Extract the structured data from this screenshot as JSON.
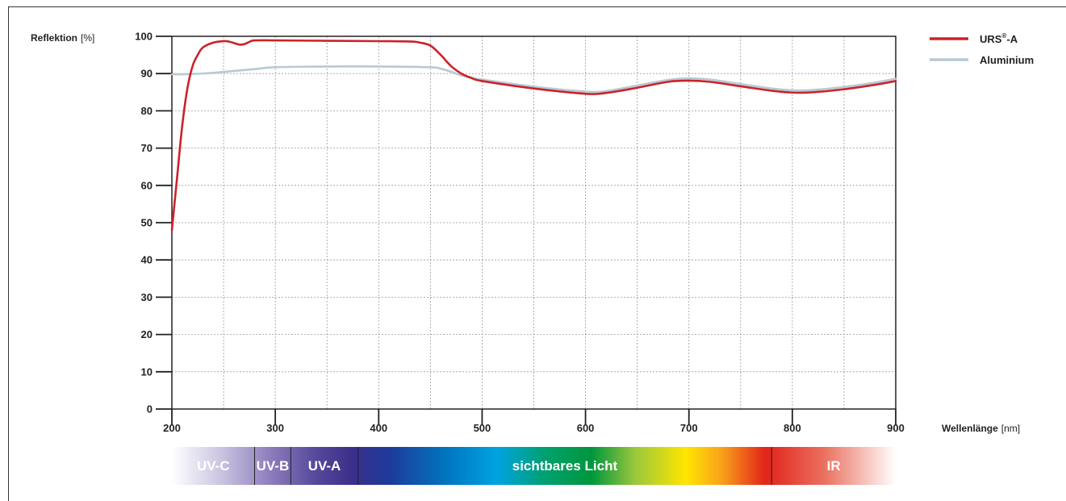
{
  "chart_data": {
    "type": "line",
    "ylabel": "Reflektion",
    "ylabel_unit": "[%]",
    "xlabel": "Wellenlänge",
    "xlabel_unit": "[nm]",
    "xlim": [
      200,
      900
    ],
    "ylim": [
      0,
      100
    ],
    "x_ticks": [
      200,
      300,
      400,
      500,
      600,
      700,
      800,
      900
    ],
    "y_ticks": [
      0,
      10,
      20,
      30,
      40,
      50,
      60,
      70,
      80,
      90,
      100
    ],
    "grid": true,
    "legend_position": "top-right",
    "series": [
      {
        "name": "URS",
        "name_superscript": "®",
        "name_suffix": "-A",
        "color": "#cc2229",
        "points": [
          [
            200,
            48
          ],
          [
            205,
            62
          ],
          [
            210,
            76
          ],
          [
            215,
            86
          ],
          [
            220,
            92
          ],
          [
            225,
            95
          ],
          [
            230,
            97
          ],
          [
            240,
            98.3
          ],
          [
            250,
            98.7
          ],
          [
            255,
            98.6
          ],
          [
            260,
            98.2
          ],
          [
            265,
            97.8
          ],
          [
            270,
            97.9
          ],
          [
            275,
            98.5
          ],
          [
            280,
            98.9
          ],
          [
            300,
            98.9
          ],
          [
            350,
            98.8
          ],
          [
            400,
            98.7
          ],
          [
            430,
            98.6
          ],
          [
            440,
            98.3
          ],
          [
            450,
            97.5
          ],
          [
            460,
            95
          ],
          [
            470,
            92
          ],
          [
            480,
            90
          ],
          [
            490,
            88.8
          ],
          [
            500,
            88
          ],
          [
            550,
            86
          ],
          [
            600,
            84.6
          ],
          [
            620,
            84.8
          ],
          [
            650,
            86.2
          ],
          [
            680,
            87.8
          ],
          [
            700,
            88.1
          ],
          [
            720,
            87.8
          ],
          [
            750,
            86.6
          ],
          [
            780,
            85.4
          ],
          [
            800,
            84.9
          ],
          [
            820,
            85
          ],
          [
            850,
            85.8
          ],
          [
            880,
            87
          ],
          [
            900,
            88
          ]
        ]
      },
      {
        "name": "Aluminium",
        "color": "#b7c9d6",
        "points": [
          [
            200,
            89.8
          ],
          [
            220,
            89.9
          ],
          [
            240,
            90.2
          ],
          [
            260,
            90.7
          ],
          [
            280,
            91.2
          ],
          [
            300,
            91.7
          ],
          [
            350,
            91.9
          ],
          [
            400,
            91.9
          ],
          [
            450,
            91.7
          ],
          [
            460,
            91.3
          ],
          [
            470,
            90.5
          ],
          [
            480,
            89.5
          ],
          [
            490,
            88.8
          ],
          [
            500,
            88.4
          ],
          [
            550,
            86.5
          ],
          [
            600,
            85.2
          ],
          [
            620,
            85.3
          ],
          [
            650,
            86.8
          ],
          [
            680,
            88.3
          ],
          [
            700,
            88.7
          ],
          [
            720,
            88.4
          ],
          [
            750,
            87.2
          ],
          [
            780,
            86
          ],
          [
            800,
            85.5
          ],
          [
            820,
            85.6
          ],
          [
            850,
            86.4
          ],
          [
            880,
            87.6
          ],
          [
            900,
            88.6
          ]
        ]
      }
    ],
    "spectrum_bands": [
      {
        "label": "UV-C",
        "from": 200,
        "to": 280
      },
      {
        "label": "UV-B",
        "from": 280,
        "to": 315
      },
      {
        "label": "UV-A",
        "from": 315,
        "to": 380
      },
      {
        "label": "sichtbares Licht",
        "from": 380,
        "to": 780
      },
      {
        "label": "IR",
        "from": 780,
        "to": 900
      }
    ]
  }
}
